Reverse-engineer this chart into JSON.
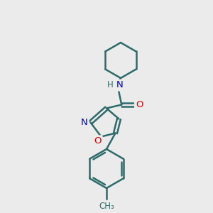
{
  "background_color": "#ebebeb",
  "bond_color": "#2d6b6b",
  "N_color": "#0000cc",
  "O_color": "#dd0000",
  "figsize": [
    3.0,
    3.0
  ],
  "dpi": 100,
  "lw": 1.8,
  "xlim": [
    0,
    10
  ],
  "ylim": [
    0,
    12
  ]
}
